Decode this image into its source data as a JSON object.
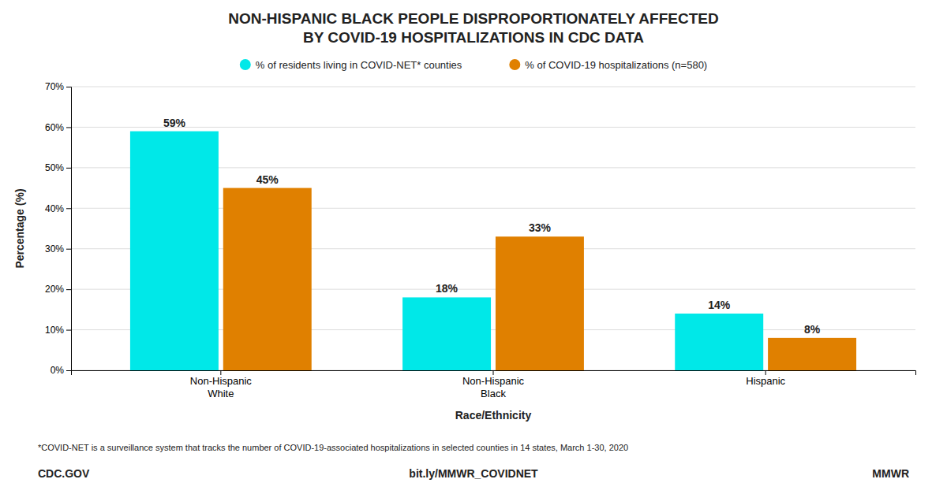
{
  "chart_data": {
    "type": "bar",
    "title": "NON-HISPANIC BLACK PEOPLE DISPROPORTIONATELY AFFECTED\nBY COVID-19 HOSPITALIZATIONS IN CDC DATA",
    "categories": [
      "Non-Hispanic\nWhite",
      "Non-Hispanic\nBlack",
      "Hispanic"
    ],
    "series": [
      {
        "name": "% of residents living in COVID-NET* counties",
        "color": "#00e8e8",
        "values": [
          59,
          18,
          14
        ],
        "value_labels": [
          "59%",
          "18%",
          "14%"
        ]
      },
      {
        "name": "% of COVID-19 hospitalizations (n=580)",
        "color": "#e08000",
        "values": [
          45,
          33,
          8
        ],
        "value_labels": [
          "45%",
          "33%",
          "8%"
        ]
      }
    ],
    "xlabel": "Race/Ethnicity",
    "ylabel": "Percentage (%)",
    "ylim": [
      0,
      70
    ],
    "yticks": [
      {
        "value": 0,
        "label": "0%"
      },
      {
        "value": 10,
        "label": "10%"
      },
      {
        "value": 20,
        "label": "20%"
      },
      {
        "value": 30,
        "label": "30%"
      },
      {
        "value": 40,
        "label": "40%"
      },
      {
        "value": 50,
        "label": "50%"
      },
      {
        "value": 60,
        "label": "60%"
      },
      {
        "value": 70,
        "label": "70%"
      }
    ],
    "grid": true,
    "legend": "top",
    "data_labels": true,
    "annotations": [
      "*COVID-NET is a surveillance system that tracks the number of COVID-19-associated hospitalizations in selected counties in 14 states, March 1-30, 2020",
      "CDC.GOV",
      "bit.ly/MMWR_COVIDNET",
      "MMWR"
    ]
  }
}
